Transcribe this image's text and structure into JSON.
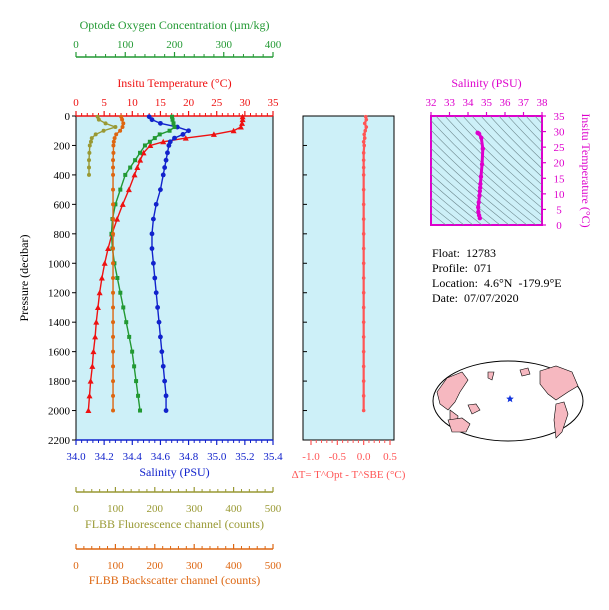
{
  "chart_data": [
    {
      "type": "line",
      "title": "",
      "y_axis": {
        "label": "Pressure (decibar)",
        "range": [
          2200,
          0
        ],
        "ticks": [
          0,
          200,
          400,
          600,
          800,
          1000,
          1200,
          1400,
          1600,
          1800,
          2000,
          2200
        ]
      },
      "axes": {
        "oxygen": {
          "label": "Optode Oxygen Concentration (µm/kg)",
          "range": [
            0,
            400
          ],
          "ticks": [
            0,
            100,
            200,
            300,
            400
          ],
          "color": "#229933"
        },
        "temperature": {
          "label": "Insitu Temperature (°C)",
          "range": [
            0,
            35
          ],
          "ticks": [
            0,
            5,
            10,
            15,
            20,
            25,
            30,
            35
          ],
          "color": "#ee1111"
        },
        "salinity": {
          "label": "Salinity (PSU)",
          "range": [
            34.0,
            35.4
          ],
          "ticks": [
            "34.0",
            "34.2",
            "34.4",
            "34.6",
            "34.8",
            "35.0",
            "35.2",
            "35.4"
          ],
          "color": "#1122cc"
        },
        "fluorescence": {
          "label": "FLBB Fluorescence channel (counts)",
          "range": [
            0,
            500
          ],
          "ticks": [
            0,
            100,
            200,
            300,
            400,
            500
          ],
          "color": "#999933"
        },
        "backscatter": {
          "label": "FLBB Backscatter channel (counts)",
          "range": [
            0,
            500
          ],
          "ticks": [
            0,
            100,
            200,
            300,
            400,
            500
          ],
          "color": "#dd6611"
        }
      },
      "series": [
        {
          "axis": "temperature",
          "pressure": [
            5,
            25,
            50,
            75,
            100,
            125,
            150,
            175,
            200,
            250,
            300,
            350,
            400,
            500,
            600,
            700,
            800,
            900,
            1000,
            1100,
            1200,
            1300,
            1400,
            1500,
            1600,
            1700,
            1800,
            1900,
            2000
          ],
          "values": [
            29.6,
            29.6,
            29.5,
            29.3,
            28.0,
            24.5,
            19.5,
            15.5,
            13.2,
            12.0,
            11.4,
            10.9,
            10.4,
            9.4,
            8.3,
            7.3,
            6.4,
            5.7,
            5.1,
            4.6,
            4.2,
            3.9,
            3.6,
            3.4,
            3.1,
            2.9,
            2.6,
            2.4,
            2.2
          ]
        },
        {
          "axis": "salinity",
          "pressure": [
            5,
            25,
            50,
            75,
            100,
            125,
            150,
            175,
            200,
            250,
            300,
            350,
            400,
            500,
            600,
            700,
            800,
            900,
            1000,
            1100,
            1200,
            1300,
            1400,
            1500,
            1600,
            1700,
            1800,
            1900,
            2000
          ],
          "values": [
            34.52,
            34.54,
            34.6,
            34.72,
            34.8,
            34.76,
            34.7,
            34.67,
            34.66,
            34.65,
            34.64,
            34.63,
            34.62,
            34.6,
            34.57,
            34.55,
            34.54,
            34.54,
            34.55,
            34.56,
            34.57,
            34.58,
            34.59,
            34.6,
            34.61,
            34.62,
            34.63,
            34.64,
            34.64
          ]
        },
        {
          "axis": "oxygen",
          "pressure": [
            5,
            25,
            50,
            75,
            100,
            125,
            150,
            175,
            200,
            250,
            300,
            350,
            400,
            500,
            600,
            700,
            800,
            900,
            1000,
            1100,
            1200,
            1300,
            1400,
            1500,
            1600,
            1700,
            1800,
            1900,
            2000
          ],
          "values": [
            195,
            196,
            198,
            200,
            190,
            170,
            160,
            150,
            140,
            130,
            120,
            110,
            100,
            90,
            80,
            74,
            72,
            74,
            78,
            84,
            90,
            96,
            102,
            108,
            114,
            118,
            122,
            126,
            130
          ]
        },
        {
          "axis": "fluorescence",
          "pressure": [
            5,
            25,
            50,
            75,
            100,
            125,
            150,
            175,
            200,
            250,
            300,
            350,
            400
          ],
          "values": [
            55,
            58,
            75,
            100,
            70,
            50,
            40,
            38,
            35,
            34,
            33,
            33,
            33
          ]
        },
        {
          "axis": "backscatter",
          "pressure": [
            5,
            25,
            50,
            75,
            100,
            125,
            150,
            175,
            200,
            250,
            300,
            350,
            400,
            500,
            600,
            700,
            800,
            900,
            1000,
            1100,
            1200,
            1300,
            1400,
            1500,
            1600,
            1700,
            1800,
            1900,
            2000
          ],
          "values": [
            115,
            117,
            120,
            118,
            112,
            102,
            98,
            96,
            95,
            95,
            94,
            94,
            94,
            94,
            94,
            94,
            94,
            94,
            94,
            94,
            94,
            94,
            94,
            94,
            94,
            94,
            94,
            94,
            94
          ]
        }
      ]
    },
    {
      "type": "line",
      "title": "",
      "x_axis": {
        "label": "ΔT= T^Opt - T^SBE (°C)",
        "range": [
          -1.0,
          0.5
        ],
        "ticks": [
          "-1.0",
          "-0.5",
          "0.0",
          "0.5"
        ],
        "color": "#ff5555"
      },
      "y_range": [
        2200,
        0
      ],
      "series": [
        {
          "pressure": [
            5,
            25,
            50,
            75,
            100,
            125,
            150,
            175,
            200,
            250,
            300,
            350,
            400,
            500,
            600,
            700,
            800,
            900,
            1000,
            1100,
            1200,
            1300,
            1400,
            1500,
            1600,
            1700,
            1800,
            1900,
            2000
          ],
          "values": [
            0.04,
            0.05,
            0.02,
            0.05,
            0.03,
            0.01,
            0.02,
            0.0,
            0.01,
            0.0,
            0.0,
            0.0,
            0.0,
            0.0,
            0.0,
            0.0,
            0.0,
            0.0,
            0.0,
            0.0,
            0.0,
            0.0,
            0.0,
            0.0,
            0.0,
            0.0,
            0.0,
            0.0,
            0.0
          ]
        }
      ]
    },
    {
      "type": "scatter",
      "title": "",
      "x_axis": {
        "label": "Salinity (PSU)",
        "range": [
          32,
          38
        ],
        "ticks": [
          32,
          33,
          34,
          35,
          36,
          37,
          38
        ]
      },
      "y_axis": {
        "label": "Insitu Temperature (°C)",
        "range": [
          0,
          35
        ],
        "ticks": [
          0,
          5,
          10,
          15,
          20,
          25,
          30,
          35
        ]
      },
      "color": "#dd00cc",
      "series": [
        {
          "salinity": [
            34.52,
            34.54,
            34.6,
            34.72,
            34.8,
            34.76,
            34.7,
            34.67,
            34.66,
            34.64,
            34.62,
            34.58,
            34.55,
            34.56,
            34.6,
            34.64
          ],
          "temperature": [
            29.6,
            29.5,
            29.3,
            28.0,
            24.5,
            19.5,
            15.5,
            13.2,
            12.0,
            10.9,
            9.4,
            7.3,
            5.7,
            4.2,
            3.1,
            2.2
          ]
        }
      ]
    }
  ],
  "float_info": {
    "float": "Float:  12783",
    "profile": "Profile:  071",
    "location": "Location:  4.6°N  -179.9°E",
    "date": "Date:  07/07/2020"
  },
  "colors": {
    "panel_bg": "#cdf0f8",
    "map_land": "#f6b8c0",
    "map_ocean": "#ffffff",
    "marker": "#1133dd"
  }
}
